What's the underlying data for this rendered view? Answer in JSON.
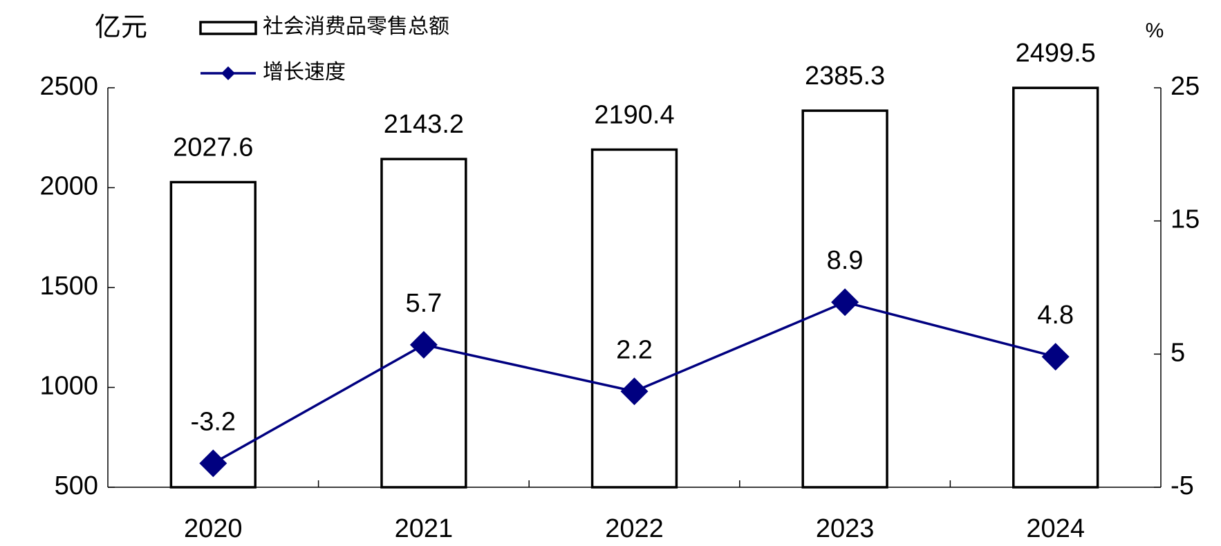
{
  "chart_data": {
    "type": "bar_line",
    "y_label": "亿元",
    "y2_label": "%",
    "categories": [
      "2020",
      "2021",
      "2022",
      "2023",
      "2024"
    ],
    "series": [
      {
        "name": "社会消费品零售总额",
        "type": "bar",
        "color": "#000000",
        "values": [
          2027.6,
          2143.2,
          2190.4,
          2385.3,
          2499.5
        ]
      },
      {
        "name": "增长速度",
        "type": "line",
        "axis": "y2",
        "color": "#000080",
        "values": [
          -3.2,
          5.7,
          2.2,
          8.9,
          4.8
        ]
      }
    ],
    "ylim": [
      500,
      2500
    ],
    "yticks": [
      500,
      1000,
      1500,
      2000,
      2500
    ],
    "y2lim": [
      -5,
      25
    ],
    "y2ticks": [
      -5,
      5,
      15,
      25
    ],
    "grid": false,
    "legend": "top-left"
  }
}
